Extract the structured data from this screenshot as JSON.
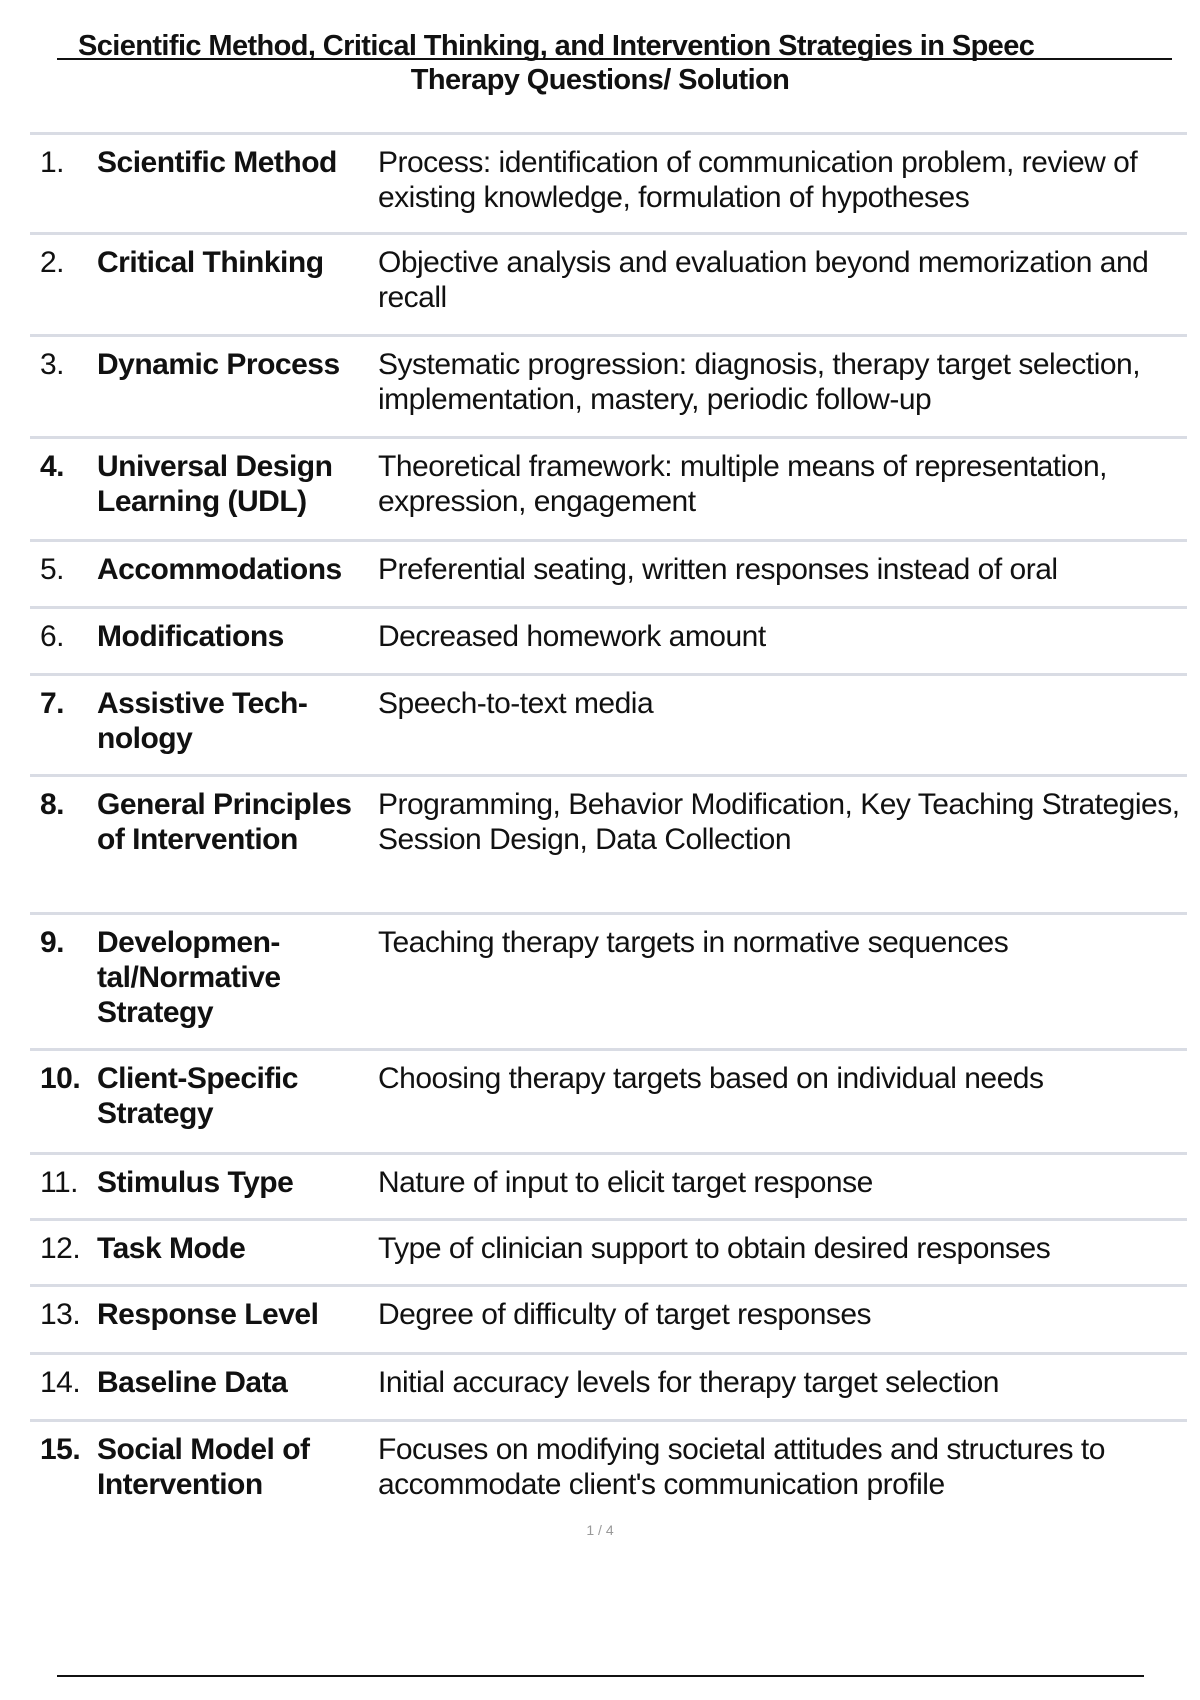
{
  "title": {
    "line1": "Scientific Method, Critical Thinking, and Intervention Strategies in Speec",
    "line2": "Therapy Questions/ Solution"
  },
  "rows": [
    {
      "num": "1.",
      "bold_num": false,
      "term": "Scientific Method",
      "definition": "Process: identification of communication problem, review of existing knowledge, formulation of hypotheses"
    },
    {
      "num": "2.",
      "bold_num": false,
      "term": "Critical Thinking",
      "definition": "Objective analysis and evaluation beyond memorization and recall"
    },
    {
      "num": "3.",
      "bold_num": false,
      "term": "Dynamic Process",
      "definition": "Systematic progression: diagnosis, therapy target selec­tion, implementation, mastery, periodic follow-up"
    },
    {
      "num": "4.",
      "bold_num": true,
      "term": "Universal Design Learning (UDL)",
      "definition": "Theoretical framework: multiple means of representation, expression, engagement"
    },
    {
      "num": "5.",
      "bold_num": false,
      "term": "Accommodations",
      "definition": "Preferential seating, written responses instead of oral"
    },
    {
      "num": "6.",
      "bold_num": false,
      "term": "Modifications",
      "definition": "Decreased homework amount"
    },
    {
      "num": "7.",
      "bold_num": true,
      "term": "Assistive Tech­nology",
      "definition": "Speech-to-text media"
    },
    {
      "num": "8.",
      "bold_num": true,
      "term": "General Princi­ples of Interven­tion",
      "definition": "Programming, Behavior Modification, Key Teaching Strategies, Session Design, Data Collection"
    },
    {
      "num": "9.",
      "bold_num": true,
      "term": "Developmen­tal/Normative Strategy",
      "definition": "Teaching therapy targets in normative sequences"
    },
    {
      "num": "10.",
      "bold_num": true,
      "term": "Client-Specific Strategy",
      "definition": "Choosing therapy targets based on individual needs"
    },
    {
      "num": "11.",
      "bold_num": false,
      "term": "Stimulus Type",
      "definition": "Nature of input to elicit target response"
    },
    {
      "num": "12.",
      "bold_num": false,
      "term": "Task Mode",
      "definition": "Type of clinician support to obtain desired responses"
    },
    {
      "num": "13.",
      "bold_num": false,
      "term": "Response Level",
      "definition": "Degree of difficulty of target responses"
    },
    {
      "num": "14.",
      "bold_num": false,
      "term": "Baseline Data",
      "definition": "Initial accuracy levels for therapy target selection"
    },
    {
      "num": "15.",
      "bold_num": true,
      "term": "Social Model of Intervention",
      "definition": "Focuses on modifying societal attitudes and structures to accommodate client's communication profile"
    }
  ],
  "page_indicator": "1 / 4",
  "colors": {
    "row_divider": "#d9dce4",
    "text": "#111111"
  }
}
